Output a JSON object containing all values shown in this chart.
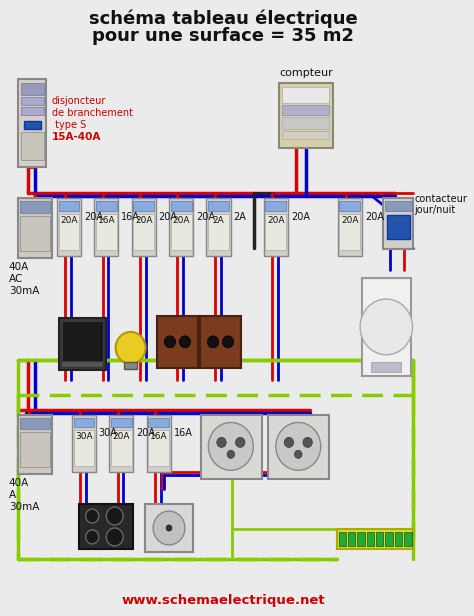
{
  "title_line1": "schéma tableau électrique",
  "title_line2": "pour une surface = 35 m2",
  "subtitle": "www.schemaelectrique.net",
  "bg_color": "#ebebeb",
  "title_color": "#111111",
  "subtitle_color": "#cc0000",
  "label_disjbranch_line1": "disjoncteur",
  "label_disjbranch_line2": "de branchement",
  "label_disjbranch_line3": " type S",
  "label_disjbranch_line4": "15A-40A",
  "label_disjbranch_color": "#cc0000",
  "label_compteur": "compteur",
  "label_contacteur_l1": "contacteur",
  "label_contacteur_l2": "jour/nuit",
  "top_amperes": [
    "20A",
    "16A",
    "20A",
    "20A",
    "2A",
    "20A",
    "20A"
  ],
  "top_left_label": [
    "40A",
    "AC",
    "30mA"
  ],
  "bot_amperes": [
    "30A",
    "20A",
    "16A"
  ],
  "bot_left_label": [
    "40A",
    "A",
    "30mA"
  ],
  "R": "#dd0000",
  "B": "#0000cc",
  "K": "#222222",
  "YG": "#88cc00",
  "YL": "#ddcc00"
}
